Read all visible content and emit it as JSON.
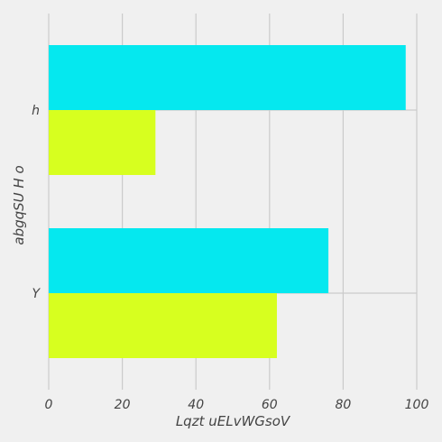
{
  "chart_data": {
    "type": "bar",
    "orientation": "horizontal",
    "categories": [
      "Y",
      "h"
    ],
    "series": [
      {
        "values": [
          62,
          29
        ],
        "color": "#d7ff1f"
      },
      {
        "values": [
          76,
          97
        ],
        "color": "#05e8ef"
      }
    ],
    "xlabel": "Lqzt uELvWGsoV",
    "ylabel": "abgqSU H o",
    "xlim": [
      0,
      100
    ],
    "xticks": [
      0,
      20,
      40,
      60,
      80,
      100
    ],
    "grid": true
  }
}
